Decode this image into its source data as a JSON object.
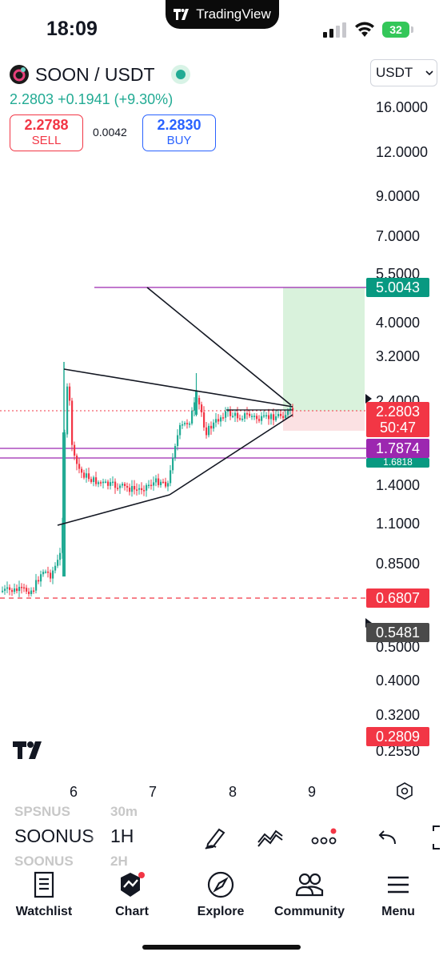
{
  "status_bar": {
    "time": "18:09",
    "app_name": "TradingView",
    "battery": "32"
  },
  "header": {
    "symbol": "SOON / USDT",
    "last_price": "2.2803",
    "change": "+0.1941 (+9.30%)",
    "sell_price": "2.2788",
    "sell_label": "SELL",
    "spread": "0.0042",
    "buy_price": "2.2830",
    "buy_label": "BUY",
    "currency": "USDT"
  },
  "price_axis": [
    "16.0000",
    "12.0000",
    "9.0000",
    "7.0000",
    "5.5000",
    "4.0000",
    "3.2000",
    "2.4000",
    "1.4000",
    "1.1000",
    "0.8500",
    "0.5000",
    "0.4000",
    "0.3200",
    "0.2550"
  ],
  "price_tags": {
    "target": "5.0043",
    "current": "2.2803",
    "countdown": "50:47",
    "level_purple": "1.7874",
    "level_green": "1.6818",
    "stop": "0.6807",
    "low": "0.5481",
    "bottom": "0.2809"
  },
  "time_axis": [
    "6",
    "7",
    "8",
    "9"
  ],
  "colors": {
    "up": "#22ab94",
    "down": "#f23645",
    "accent": "#2962ff",
    "purple": "#9c27b0"
  },
  "toolbar": {
    "ghost_prev_symbol": "SPSNUS",
    "ghost_prev_interval": "30m",
    "symbol": "SOONUS",
    "interval": "1H",
    "ghost_next_symbol": "SOONUS",
    "ghost_next_interval": "2H",
    "icons": [
      "pen-icon",
      "indicators-icon",
      "more-icon",
      "undo-icon"
    ]
  },
  "tabs": [
    {
      "label": "Watchlist",
      "icon": "watchlist-icon"
    },
    {
      "label": "Chart",
      "icon": "chart-icon"
    },
    {
      "label": "Explore",
      "icon": "compass-icon"
    },
    {
      "label": "Community",
      "icon": "community-icon"
    },
    {
      "label": "Menu",
      "icon": "hamburger-icon"
    }
  ]
}
